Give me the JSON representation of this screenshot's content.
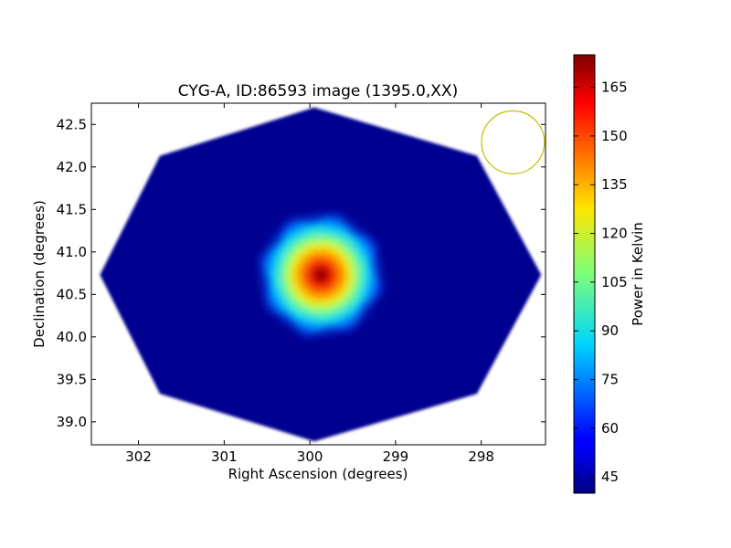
{
  "chart_data": {
    "type": "heatmap",
    "title": "CYG-A, ID:86593 image (1395.0,XX)",
    "xlabel": "Right Ascension (degrees)",
    "ylabel": "Declination (degrees)",
    "xlim": [
      302.55,
      297.25
    ],
    "ylim": [
      38.73,
      42.75
    ],
    "x_ticks": [
      302,
      301,
      300,
      299,
      298
    ],
    "y_ticks": [
      39.0,
      39.5,
      40.0,
      40.5,
      41.0,
      41.5,
      42.0,
      42.5
    ],
    "x_tick_labels": [
      "302",
      "301",
      "300",
      "299",
      "298"
    ],
    "y_tick_labels": [
      "39.0",
      "39.5",
      "40.0",
      "40.5",
      "41.0",
      "41.5",
      "42.0",
      "42.5"
    ],
    "colormap": "jet",
    "colorbar": {
      "label": "Power in Kelvin",
      "range": [
        40,
        175
      ],
      "ticks": [
        45,
        60,
        75,
        90,
        105,
        120,
        135,
        150,
        165
      ],
      "tick_labels": [
        "45",
        "60",
        "75",
        "90",
        "105",
        "120",
        "135",
        "150",
        "165"
      ]
    },
    "footprint": {
      "shape": "octagon",
      "vertices": [
        [
          299.95,
          42.7
        ],
        [
          298.05,
          42.13
        ],
        [
          297.3,
          40.73
        ],
        [
          298.05,
          39.33
        ],
        [
          299.95,
          38.77
        ],
        [
          301.75,
          39.33
        ],
        [
          302.45,
          40.73
        ],
        [
          301.75,
          42.13
        ]
      ],
      "background_value": 42
    },
    "source": {
      "ra": 299.87,
      "dec": 40.73,
      "peak_value": 172
    },
    "beam_marker": {
      "ra": 297.63,
      "dec": 42.29,
      "radius_deg": 0.37,
      "color": "#bfbf00"
    },
    "grid": false
  }
}
